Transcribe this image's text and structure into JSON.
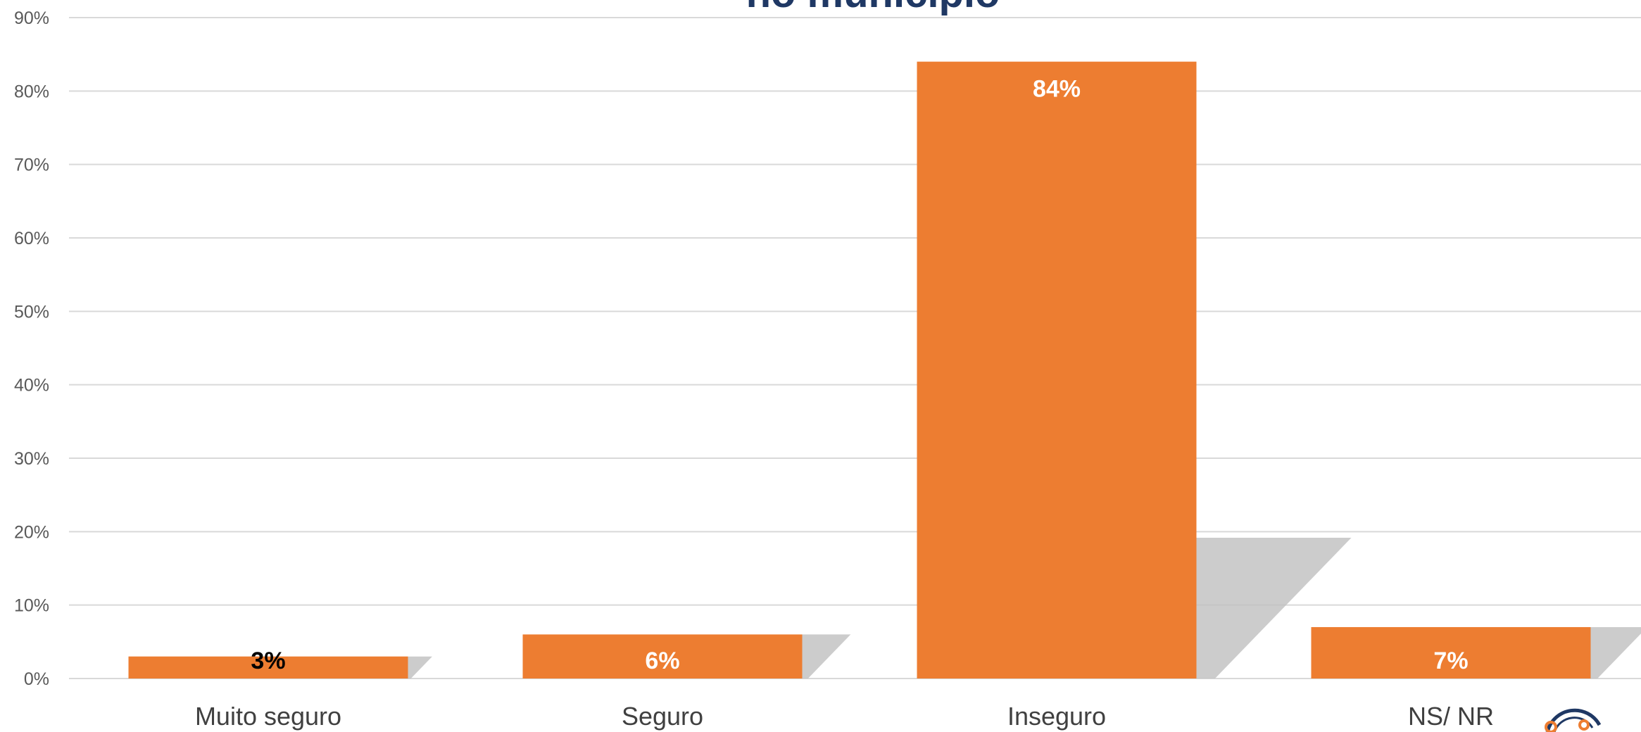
{
  "chart_data": {
    "type": "bar",
    "title": "no município",
    "categories": [
      "Muito seguro",
      "Seguro",
      "Inseguro",
      "NS/ NR"
    ],
    "values": [
      3,
      6,
      84,
      7
    ],
    "value_labels": [
      "3%",
      "6%",
      "84%",
      "7%"
    ],
    "label_colors": [
      "#000000",
      "#ffffff",
      "#ffffff",
      "#ffffff"
    ],
    "ylim": [
      0,
      90
    ],
    "yticks": [
      0,
      10,
      20,
      30,
      40,
      50,
      60,
      70,
      80,
      90
    ],
    "ytick_labels": [
      "0%",
      "10%",
      "20%",
      "30%",
      "40%",
      "50%",
      "60%",
      "70%",
      "80%",
      "90%"
    ],
    "xlabel": "",
    "ylabel": "",
    "grid": true,
    "legend": "none",
    "colors": {
      "bar": "#ed7d31",
      "gridline": "#d9d9d9",
      "title": "#1f3864",
      "shadow": "#bfbfbf"
    }
  },
  "logo": {
    "icon": "logo-icon",
    "colors": [
      "#ed7d31",
      "#1f3864"
    ]
  }
}
